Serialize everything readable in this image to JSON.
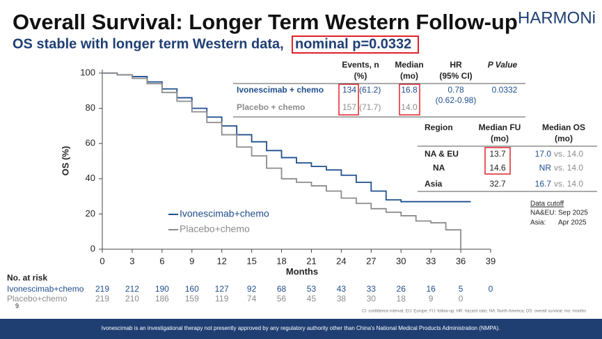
{
  "slide": {
    "logo": "HARMONi",
    "title": "Overall Survival: Longer Term Western Follow-up",
    "subtitle": "OS stable with longer term Western data,",
    "subtitle_highlight": "nominal p=0.0332",
    "page": "9",
    "footnote": "CI: confidence interval; EU: Europe; FU: follow-up; HR: hazard ratio; NA: North America; OS: overall survival; mo: months",
    "footer": "Ivonescimab is an investigational therapy not presently approved by any regulatory authority other than China's National Medical Products Administration (NMPA)."
  },
  "results_table": {
    "header": [
      [
        "Events, n",
        "(%)"
      ],
      [
        "Median",
        "(mo)"
      ],
      [
        "HR",
        "(95% CI)"
      ],
      [
        "P Value"
      ]
    ],
    "rows": [
      [
        "Ivonescimab + chemo",
        "134",
        "(61.2)",
        "16.8",
        "0.78",
        "(0.62-0.98)",
        "0.0332"
      ],
      [
        "Placebo + chemo",
        "157",
        "(71.7)",
        "14.0"
      ]
    ]
  },
  "region_table": {
    "header": [
      [
        "Region"
      ],
      [
        "Median FU",
        "(mo)"
      ],
      [
        "Median OS",
        "(mo)"
      ]
    ],
    "rows": [
      [
        "NA & EU",
        "13.7",
        "17.0",
        "vs. 14.0"
      ],
      [
        "NA",
        "14.6",
        "NR",
        "vs. 14.0"
      ],
      [
        "Asia",
        "32.7",
        "16.7",
        "vs. 14.0"
      ]
    ]
  },
  "cutoff": {
    "title": "Data cutoff",
    "rows": [
      [
        "NA&EU:",
        "Sep 2025"
      ],
      [
        "Asia:",
        "Apr 2025"
      ]
    ]
  },
  "risk_table": {
    "title": "No. at risk",
    "rows": [
      {
        "name": "Ivonescimab+chemo",
        "values": [
          219,
          212,
          190,
          160,
          127,
          92,
          68,
          53,
          43,
          33,
          26,
          16,
          5,
          0
        ]
      },
      {
        "name": "Placebo+chemo",
        "values": [
          219,
          210,
          186,
          159,
          119,
          74,
          56,
          45,
          38,
          30,
          18,
          9,
          0
        ]
      }
    ]
  },
  "chart_data": {
    "type": "line",
    "step": true,
    "x_label": "Months",
    "y_label": "OS (%)",
    "x": [
      0,
      1.5,
      3,
      4.5,
      6,
      7.5,
      9,
      10.5,
      12,
      13.5,
      15,
      16.5,
      18,
      19.5,
      21,
      22.5,
      24,
      25.5,
      27,
      28.5,
      30,
      31.5,
      33,
      34.5,
      36,
      37
    ],
    "series": [
      {
        "name": "Ivonescimab+chemo",
        "color": "#1f4e8c",
        "values": [
          100,
          99,
          98,
          95,
          91,
          86,
          80,
          75,
          70,
          65,
          61,
          56,
          52,
          49,
          47,
          45,
          42,
          38,
          33,
          28,
          27,
          27,
          27,
          27,
          27,
          27
        ]
      },
      {
        "name": "Placebo+chemo",
        "color": "#8c8c8c",
        "values": [
          100,
          99,
          97,
          94,
          89,
          84,
          78,
          72,
          65,
          58,
          53,
          46,
          40,
          38,
          36,
          33,
          29,
          26,
          23,
          21,
          19,
          16,
          15,
          11,
          0,
          null
        ]
      }
    ],
    "xlim": [
      0,
      39
    ],
    "ylim": [
      0,
      100
    ],
    "xticks": [
      0,
      3,
      6,
      9,
      12,
      15,
      18,
      21,
      24,
      27,
      30,
      33,
      36,
      39
    ],
    "yticks": [
      0,
      20,
      40,
      60,
      80,
      100
    ],
    "grid": false,
    "legend": "lower-left"
  }
}
